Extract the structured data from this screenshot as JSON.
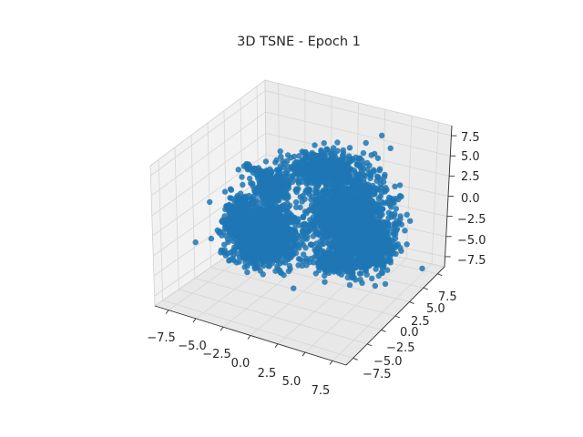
{
  "chart_data": {
    "type": "scatter",
    "title": "3D TSNE - Epoch 1",
    "xlabel": "",
    "ylabel": "",
    "zlabel": "",
    "grid": true,
    "series_color": "#1f77b4",
    "x_ticks": [
      "−7.5",
      "−5.0",
      "−2.5",
      "0.0",
      "2.5",
      "5.0",
      "7.5"
    ],
    "y_ticks": [
      "−7.5",
      "−5.0",
      "−2.5",
      "0.0",
      "2.5",
      "5.0",
      "7.5"
    ],
    "z_ticks": [
      "−7.5",
      "−5.0",
      "−2.5",
      "0.0",
      "2.5",
      "5.0",
      "7.5"
    ],
    "xlim": [
      -9,
      9
    ],
    "ylim": [
      -9,
      9
    ],
    "zlim": [
      -8.5,
      8.5
    ]
  }
}
